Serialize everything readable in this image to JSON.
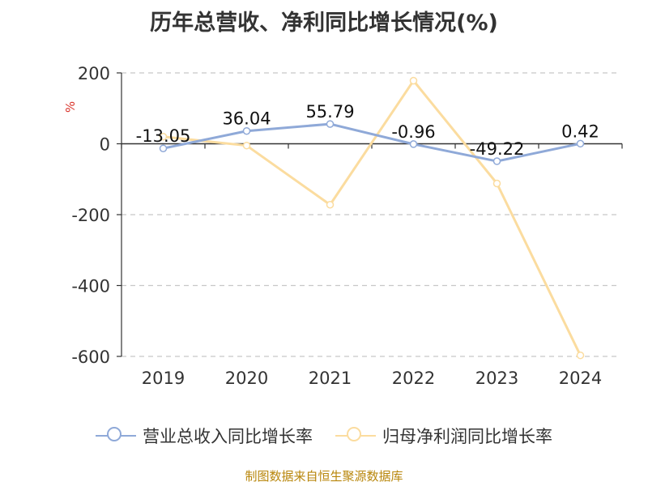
{
  "chart_data": {
    "type": "line",
    "title": "历年总营收、净利同比增长情况(%)",
    "ylabel": "%",
    "xlabel": "",
    "categories": [
      "2019",
      "2020",
      "2021",
      "2022",
      "2023",
      "2024"
    ],
    "ylim": [
      -600,
      200
    ],
    "yticks": [
      200,
      0,
      -200,
      -400,
      -600
    ],
    "grid": true,
    "legend_position": "bottom",
    "series": [
      {
        "name": "营业总收入同比增长率",
        "color": "#8fa9d8",
        "values": [
          -13.05,
          36.04,
          55.79,
          -0.96,
          -49.22,
          0.42
        ],
        "labels": [
          "-13.05",
          "36.04",
          "55.79",
          "-0.96",
          "-49.22",
          "0.42"
        ]
      },
      {
        "name": "归母净利润同比增长率",
        "color": "#fbdc9f",
        "values": [
          20,
          -5,
          -172,
          178,
          -112,
          -597
        ]
      }
    ]
  },
  "footer": "制图数据来自恒生聚源数据库"
}
